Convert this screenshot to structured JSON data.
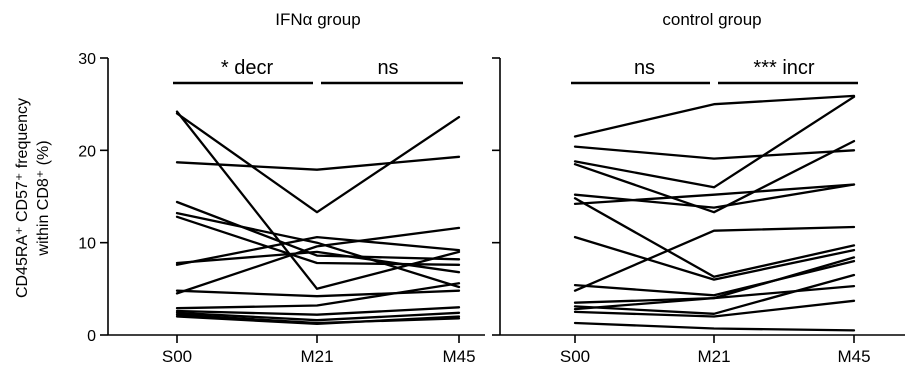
{
  "chart_data": [
    {
      "type": "line",
      "title": "IFNα  group",
      "ylabel_lines": [
        "CD45RA⁺ CD57⁺ frequency",
        "within CD8⁺ (%)"
      ],
      "categories": [
        "S00",
        "M21",
        "M45"
      ],
      "ylim": [
        0,
        30
      ],
      "yticks": [
        0,
        10,
        20,
        30
      ],
      "grid": false,
      "significance": [
        {
          "from": "S00",
          "to": "M21",
          "label": "* decr"
        },
        {
          "from": "M21",
          "to": "M45",
          "label": "ns"
        }
      ],
      "series": [
        {
          "values": [
            24.0,
            13.3,
            23.6
          ]
        },
        {
          "values": [
            24.2,
            5.0,
            9.0
          ]
        },
        {
          "values": [
            18.7,
            17.9,
            19.3
          ]
        },
        {
          "values": [
            14.4,
            8.6,
            8.2
          ]
        },
        {
          "values": [
            13.2,
            10.0,
            5.2
          ]
        },
        {
          "values": [
            12.8,
            7.8,
            7.6
          ]
        },
        {
          "values": [
            7.8,
            9.0,
            6.8
          ]
        },
        {
          "values": [
            7.6,
            10.6,
            9.2
          ]
        },
        {
          "values": [
            4.8,
            4.2,
            4.8
          ]
        },
        {
          "values": [
            4.5,
            9.6,
            11.6
          ]
        },
        {
          "values": [
            2.9,
            3.2,
            5.6
          ]
        },
        {
          "values": [
            2.6,
            2.2,
            3.0
          ]
        },
        {
          "values": [
            2.4,
            1.6,
            2.4
          ]
        },
        {
          "values": [
            2.2,
            1.3,
            1.8
          ]
        },
        {
          "values": [
            2.0,
            1.2,
            2.0
          ]
        }
      ]
    },
    {
      "type": "line",
      "title": "control group",
      "categories": [
        "S00",
        "M21",
        "M45"
      ],
      "ylim": [
        0,
        30
      ],
      "grid": false,
      "significance": [
        {
          "from": "S00",
          "to": "M21",
          "label": "ns"
        },
        {
          "from": "M21",
          "to": "M45",
          "label": "*** incr"
        }
      ],
      "series": [
        {
          "values": [
            21.5,
            25.0,
            25.9
          ]
        },
        {
          "values": [
            20.4,
            19.1,
            20.0
          ]
        },
        {
          "values": [
            18.8,
            16.0,
            25.8
          ]
        },
        {
          "values": [
            18.5,
            13.3,
            21.0
          ]
        },
        {
          "values": [
            15.2,
            13.8,
            16.3
          ]
        },
        {
          "values": [
            14.8,
            6.3,
            9.7
          ]
        },
        {
          "values": [
            14.2,
            15.2,
            16.3
          ]
        },
        {
          "values": [
            10.6,
            6.0,
            9.2
          ]
        },
        {
          "values": [
            5.4,
            4.3,
            8.0
          ]
        },
        {
          "values": [
            4.8,
            11.3,
            11.7
          ]
        },
        {
          "values": [
            3.5,
            4.0,
            8.4
          ]
        },
        {
          "values": [
            3.1,
            2.3,
            6.5
          ]
        },
        {
          "values": [
            2.8,
            4.0,
            5.3
          ]
        },
        {
          "values": [
            2.5,
            2.0,
            3.7
          ]
        },
        {
          "values": [
            1.3,
            0.7,
            0.5
          ]
        }
      ]
    }
  ]
}
